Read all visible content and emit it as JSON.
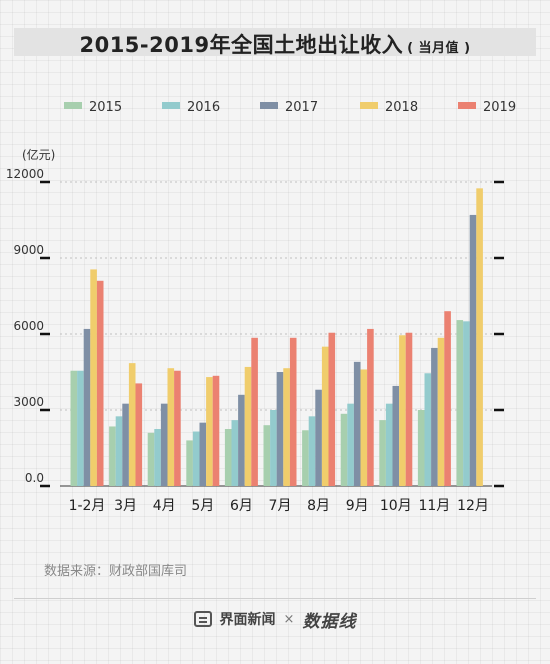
{
  "title": "2015-2019年全国土地出让收入",
  "title_sub": "( 当月值 )",
  "source": "数据来源：财政部国库司",
  "footer": {
    "brand": "界面新闻",
    "separator": "×",
    "partner": "数据线"
  },
  "colors": {
    "2015": "#a7cfae",
    "2016": "#93cbcd",
    "2017": "#7f8fa5",
    "2018": "#f0cd6c",
    "2019": "#eb8171"
  },
  "chart_data": {
    "type": "bar",
    "title": "2015-2019年全国土地出让收入",
    "ylabel": "(亿元)",
    "xlabel": "",
    "ylim": [
      0,
      12000
    ],
    "yticks": [
      0,
      3000,
      6000,
      9000,
      12000
    ],
    "ytick_labels": [
      "0.0",
      "3000",
      "6000",
      "9000",
      "12000"
    ],
    "grid": true,
    "legend": "top",
    "categories": [
      "1-2月",
      "3月",
      "4月",
      "5月",
      "6月",
      "7月",
      "8月",
      "9月",
      "10月",
      "11月",
      "12月"
    ],
    "series": [
      {
        "name": "2015",
        "values": [
          4550,
          2350,
          2100,
          1800,
          2250,
          2400,
          2200,
          2850,
          2600,
          3000,
          6550
        ]
      },
      {
        "name": "2016",
        "values": [
          4550,
          2750,
          2250,
          2150,
          2600,
          3000,
          2750,
          3250,
          3250,
          4450,
          6500
        ]
      },
      {
        "name": "2017",
        "values": [
          6200,
          3250,
          3250,
          2500,
          3600,
          4500,
          3800,
          4900,
          3950,
          5450,
          10700
        ]
      },
      {
        "name": "2018",
        "values": [
          8550,
          4850,
          4650,
          4300,
          4700,
          4650,
          5500,
          4600,
          5950,
          5850,
          11750
        ]
      },
      {
        "name": "2019",
        "values": [
          8100,
          4050,
          4550,
          4350,
          5850,
          5850,
          6050,
          6200,
          6050,
          6900,
          null
        ]
      }
    ]
  }
}
